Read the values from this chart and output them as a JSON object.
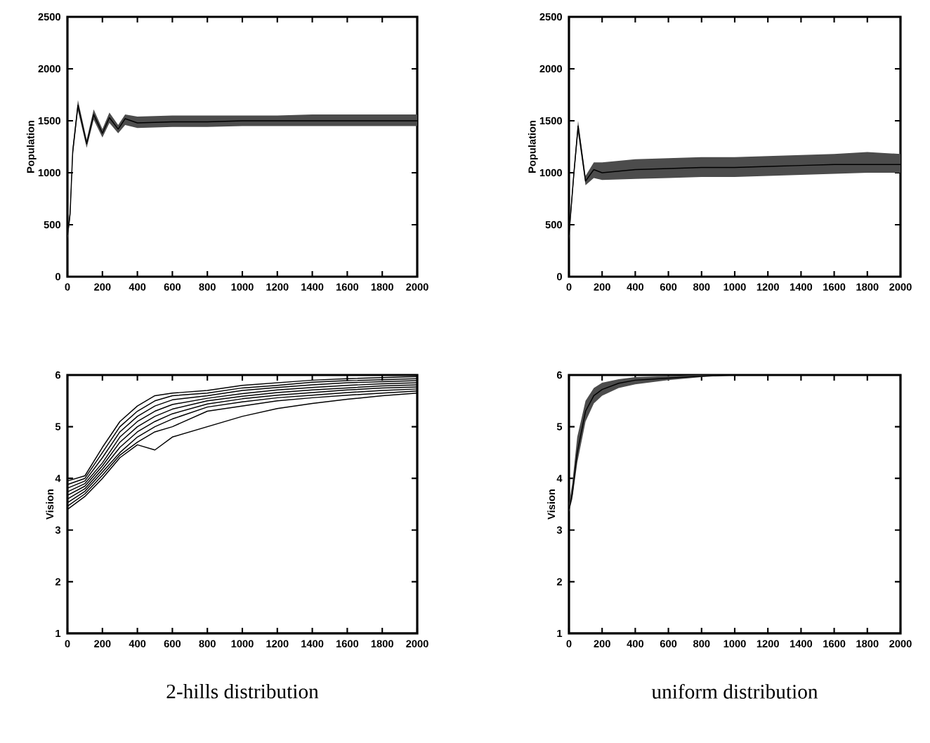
{
  "chart_data": [
    {
      "type": "line",
      "ylabel": "Population",
      "xlim": [
        0,
        2000
      ],
      "ylim": [
        0,
        2500
      ],
      "xticks": [
        0,
        200,
        400,
        600,
        800,
        1000,
        1200,
        1400,
        1600,
        1800,
        2000
      ],
      "yticks": [
        0,
        500,
        1000,
        1500,
        2000,
        2500
      ],
      "x": [
        0,
        15,
        30,
        60,
        110,
        150,
        200,
        240,
        290,
        330,
        400,
        600,
        800,
        1000,
        1200,
        1400,
        1600,
        1800,
        2000
      ],
      "series": [
        {
          "color": "#000000",
          "values": [
            400,
            600,
            1200,
            1650,
            1280,
            1560,
            1380,
            1530,
            1420,
            1520,
            1480,
            1490,
            1490,
            1500,
            1500,
            1500,
            1500,
            1500,
            1500
          ],
          "lower": [
            350,
            550,
            1150,
            1600,
            1240,
            1510,
            1340,
            1480,
            1380,
            1460,
            1430,
            1440,
            1440,
            1450,
            1450,
            1450,
            1450,
            1450,
            1450
          ],
          "upper": [
            450,
            650,
            1250,
            1700,
            1320,
            1610,
            1420,
            1580,
            1460,
            1560,
            1540,
            1550,
            1550,
            1550,
            1550,
            1560,
            1560,
            1560,
            1560
          ]
        }
      ]
    },
    {
      "type": "line",
      "ylabel": "Population",
      "xlim": [
        0,
        2000
      ],
      "ylim": [
        0,
        2500
      ],
      "xticks": [
        0,
        200,
        400,
        600,
        800,
        1000,
        1200,
        1400,
        1600,
        1800,
        2000
      ],
      "yticks": [
        0,
        500,
        1000,
        1500,
        2000,
        2500
      ],
      "x": [
        0,
        15,
        30,
        55,
        100,
        150,
        200,
        400,
        600,
        800,
        1000,
        1200,
        1400,
        1600,
        1800,
        2000
      ],
      "series": [
        {
          "color": "#000000",
          "values": [
            400,
            700,
            1000,
            1450,
            920,
            1030,
            1000,
            1030,
            1040,
            1050,
            1050,
            1060,
            1070,
            1080,
            1080,
            1080
          ],
          "lower": [
            350,
            650,
            950,
            1380,
            880,
            950,
            930,
            940,
            950,
            960,
            960,
            970,
            980,
            990,
            1000,
            1000
          ],
          "upper": [
            450,
            750,
            1050,
            1500,
            970,
            1100,
            1100,
            1130,
            1140,
            1150,
            1150,
            1160,
            1170,
            1180,
            1200,
            1180
          ]
        }
      ]
    },
    {
      "type": "line",
      "ylabel": "Vision",
      "xlim": [
        0,
        2000
      ],
      "ylim": [
        1,
        6
      ],
      "xticks": [
        0,
        200,
        400,
        600,
        800,
        1000,
        1200,
        1400,
        1600,
        1800,
        2000
      ],
      "yticks": [
        1,
        2,
        3,
        4,
        5,
        6
      ],
      "annotations": [
        "2-hills distribution"
      ],
      "x": [
        0,
        100,
        200,
        300,
        400,
        500,
        600,
        800,
        1000,
        1200,
        1400,
        1600,
        1800,
        2000
      ],
      "series": [
        {
          "color": "#000000",
          "values": [
            3.95,
            4.05,
            4.6,
            5.1,
            5.4,
            5.6,
            5.65,
            5.7,
            5.8,
            5.85,
            5.9,
            5.93,
            5.95,
            5.97
          ]
        },
        {
          "color": "#000000",
          "values": [
            3.88,
            4.0,
            4.5,
            5.0,
            5.3,
            5.5,
            5.6,
            5.65,
            5.75,
            5.8,
            5.86,
            5.89,
            5.91,
            5.93
          ]
        },
        {
          "color": "#000000",
          "values": [
            3.81,
            3.95,
            4.4,
            4.9,
            5.2,
            5.4,
            5.52,
            5.6,
            5.7,
            5.76,
            5.81,
            5.85,
            5.87,
            5.89
          ]
        },
        {
          "color": "#000000",
          "values": [
            3.74,
            3.9,
            4.3,
            4.8,
            5.1,
            5.3,
            5.43,
            5.55,
            5.64,
            5.71,
            5.76,
            5.8,
            5.83,
            5.85
          ]
        },
        {
          "color": "#000000",
          "values": [
            3.67,
            3.85,
            4.24,
            4.7,
            5.0,
            5.2,
            5.34,
            5.5,
            5.59,
            5.66,
            5.71,
            5.75,
            5.79,
            5.81
          ]
        },
        {
          "color": "#000000",
          "values": [
            3.6,
            3.8,
            4.18,
            4.6,
            4.9,
            5.1,
            5.25,
            5.44,
            5.54,
            5.61,
            5.66,
            5.71,
            5.75,
            5.77
          ]
        },
        {
          "color": "#000000",
          "values": [
            3.53,
            3.75,
            4.12,
            4.5,
            4.8,
            5.0,
            5.15,
            5.38,
            5.48,
            5.56,
            5.61,
            5.66,
            5.7,
            5.73
          ]
        },
        {
          "color": "#000000",
          "values": [
            3.46,
            3.7,
            4.06,
            4.45,
            4.7,
            4.9,
            5.0,
            5.3,
            5.4,
            5.5,
            5.56,
            5.61,
            5.65,
            5.69
          ]
        },
        {
          "color": "#000000",
          "values": [
            3.4,
            3.65,
            4.0,
            4.4,
            4.65,
            4.55,
            4.8,
            5.0,
            5.2,
            5.35,
            5.45,
            5.53,
            5.6,
            5.65
          ]
        }
      ]
    },
    {
      "type": "line",
      "ylabel": "Vision",
      "xlim": [
        0,
        2000
      ],
      "ylim": [
        1,
        6
      ],
      "xticks": [
        0,
        200,
        400,
        600,
        800,
        1000,
        1200,
        1400,
        1600,
        1800,
        2000
      ],
      "yticks": [
        1,
        2,
        3,
        4,
        5,
        6
      ],
      "annotations": [
        "uniform distribution"
      ],
      "x": [
        0,
        20,
        50,
        100,
        150,
        200,
        300,
        400,
        600,
        800,
        1000,
        1500,
        2000
      ],
      "series": [
        {
          "color": "#000000",
          "values": [
            3.4,
            3.7,
            4.5,
            5.3,
            5.6,
            5.72,
            5.84,
            5.9,
            5.94,
            5.98,
            6,
            6,
            6
          ],
          "lower": [
            3.35,
            3.6,
            4.3,
            5.1,
            5.45,
            5.6,
            5.75,
            5.82,
            5.9,
            5.96,
            6,
            6,
            6
          ],
          "upper": [
            3.5,
            3.9,
            4.8,
            5.5,
            5.75,
            5.85,
            5.92,
            5.96,
            5.98,
            6,
            6,
            6,
            6
          ]
        }
      ]
    }
  ]
}
